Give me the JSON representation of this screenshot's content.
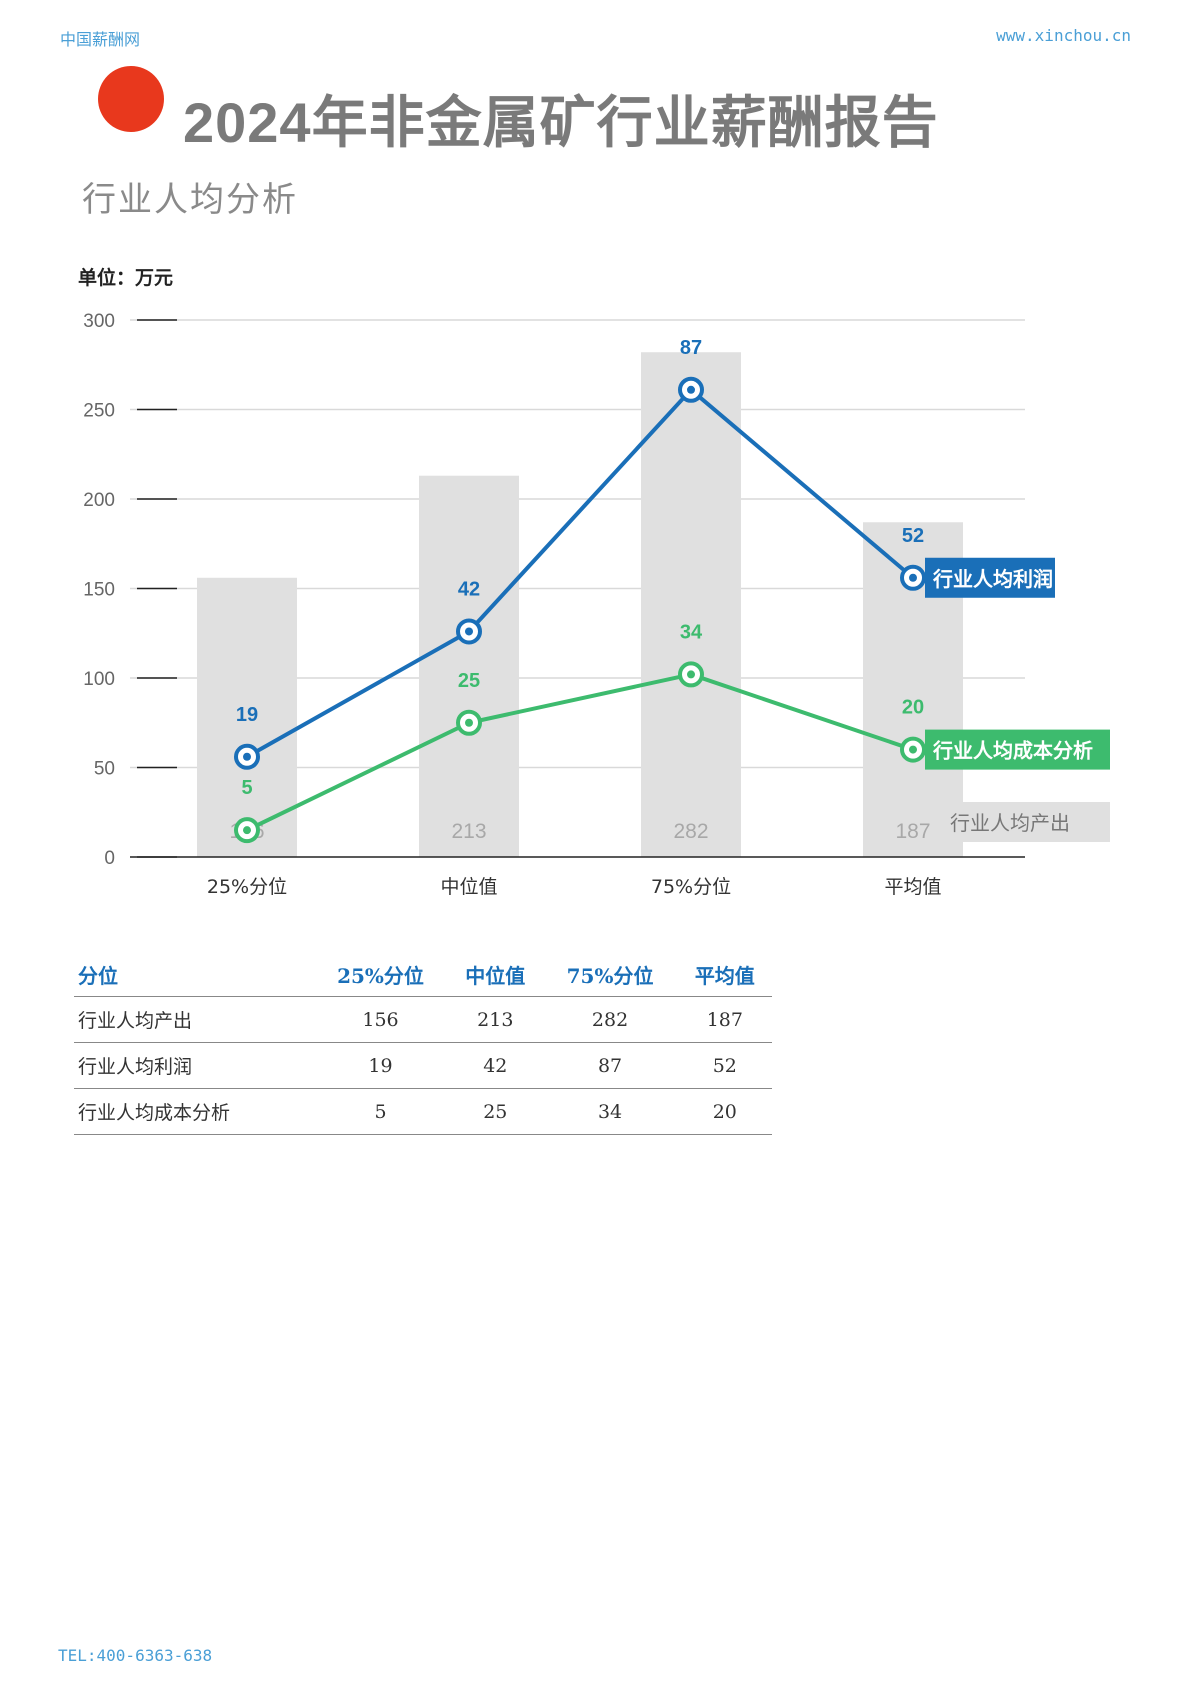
{
  "header": {
    "left": "中国薪酬网",
    "right": "www.xinchou.cn"
  },
  "title": "2024年非金属矿行业薪酬报告",
  "subtitle": "行业人均分析",
  "unit_label": "单位：万元",
  "colors": {
    "accent_dot": "#e8381d",
    "profit": "#1a6fb8",
    "cost": "#3dbb6e",
    "bars": "#e0e0e0",
    "bar_label": "#a8a8a8"
  },
  "chart_data": {
    "type": "bar",
    "categories": [
      "25%分位",
      "中位值",
      "75%分位",
      "平均值"
    ],
    "ylim": [
      0,
      300
    ],
    "yticks": [
      0,
      50,
      100,
      150,
      200,
      250,
      300
    ],
    "series": [
      {
        "name": "行业人均产出",
        "type": "bar",
        "values": [
          156,
          213,
          282,
          187
        ],
        "label_values": [
          156,
          213,
          282,
          187
        ]
      },
      {
        "name": "行业人均利润",
        "type": "line",
        "values": [
          56,
          126,
          261,
          156
        ],
        "label_values": [
          19,
          42,
          87,
          52
        ]
      },
      {
        "name": "行业人均成本分析",
        "type": "line",
        "values": [
          15,
          75,
          102,
          60
        ],
        "label_values": [
          5,
          25,
          34,
          20
        ]
      }
    ],
    "grid": true,
    "legend": "end-of-line labels"
  },
  "table": {
    "headers": [
      "分位",
      "25%分位",
      "中位值",
      "75%分位",
      "平均值"
    ],
    "rows": [
      [
        "行业人均产出",
        "156",
        "213",
        "282",
        "187"
      ],
      [
        "行业人均利润",
        "19",
        "42",
        "87",
        "52"
      ],
      [
        "行业人均成本分析",
        "5",
        "25",
        "34",
        "20"
      ]
    ]
  },
  "footer": "TEL:400-6363-638"
}
